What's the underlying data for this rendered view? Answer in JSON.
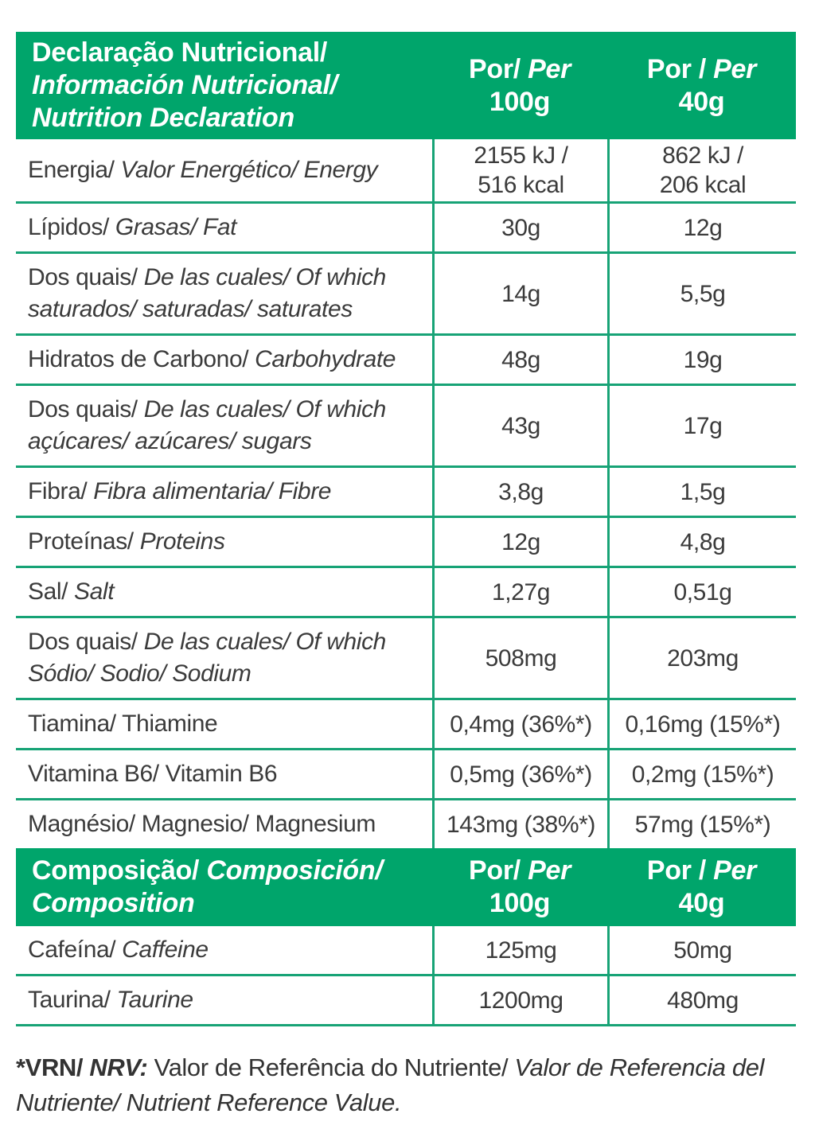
{
  "colors": {
    "green": "#00A56B",
    "line_green": "#17A376",
    "text_dark": "#3B3B3B",
    "header_text": "#FFFFFF"
  },
  "nutrition": {
    "header": {
      "title_lines": [
        [
          [
            "Declaração Nutricional/",
            "b"
          ]
        ],
        [
          [
            "Información Nutricional/",
            "bi"
          ]
        ],
        [
          [
            "Nutrition Declaration",
            "bi"
          ]
        ]
      ],
      "col_100": {
        "por_line": [
          [
            "Por/ ",
            "b"
          ],
          [
            "Per",
            "bi"
          ]
        ],
        "amount": "100g"
      },
      "col_40": {
        "por_line": [
          [
            "Por / ",
            "b"
          ],
          [
            "Per",
            "bi"
          ]
        ],
        "amount": "40g"
      }
    },
    "rows": [
      {
        "label": [
          [
            "Energia/ ",
            "r"
          ],
          [
            "Valor Energético/ Energy",
            "i"
          ]
        ],
        "per100": [
          "2155 kJ /",
          "516 kcal"
        ],
        "per40": [
          "862 kJ /",
          "206 kcal"
        ]
      },
      {
        "label": [
          [
            "Lípidos/ ",
            "r"
          ],
          [
            "Grasas/ Fat",
            "i"
          ]
        ],
        "per100": [
          "30g"
        ],
        "per40": [
          "12g"
        ]
      },
      {
        "label": [
          [
            "Dos quais/ ",
            "r"
          ],
          [
            "De las cuales/ Of which saturados/ saturadas/ saturates",
            "i"
          ]
        ],
        "per100": [
          "14g"
        ],
        "per40": [
          "5,5g"
        ]
      },
      {
        "label": [
          [
            "Hidratos de Carbono/ ",
            "r"
          ],
          [
            "Carbohydrate",
            "i"
          ]
        ],
        "per100": [
          "48g"
        ],
        "per40": [
          "19g"
        ]
      },
      {
        "label": [
          [
            "Dos quais/ ",
            "r"
          ],
          [
            "De las cuales/ Of which açúcares/ azúcares/ sugars",
            "i"
          ]
        ],
        "per100": [
          "43g"
        ],
        "per40": [
          "17g"
        ]
      },
      {
        "label": [
          [
            "Fibra/ ",
            "r"
          ],
          [
            "Fibra alimentaria/ Fibre",
            "i"
          ]
        ],
        "per100": [
          "3,8g"
        ],
        "per40": [
          "1,5g"
        ]
      },
      {
        "label": [
          [
            "Proteínas/ ",
            "r"
          ],
          [
            "Proteins",
            "i"
          ]
        ],
        "per100": [
          "12g"
        ],
        "per40": [
          "4,8g"
        ]
      },
      {
        "label": [
          [
            "Sal/ ",
            "r"
          ],
          [
            "Salt",
            "i"
          ]
        ],
        "per100": [
          "1,27g"
        ],
        "per40": [
          "0,51g"
        ]
      },
      {
        "label": [
          [
            "Dos quais/ ",
            "r"
          ],
          [
            "De las cuales/ Of which Sódio/ Sodio/ Sodium",
            "i"
          ]
        ],
        "per100": [
          "508mg"
        ],
        "per40": [
          "203mg"
        ]
      },
      {
        "label": [
          [
            "Tiamina/ Thiamine",
            "r"
          ]
        ],
        "per100": [
          "0,4mg (36%*)"
        ],
        "per40": [
          "0,16mg (15%*)"
        ]
      },
      {
        "label": [
          [
            "Vitamina B6/ Vitamin B6",
            "r"
          ]
        ],
        "per100": [
          "0,5mg (36%*)"
        ],
        "per40": [
          "0,2mg (15%*)"
        ]
      },
      {
        "label": [
          [
            "Magnésio/ Magnesio/ Magnesium",
            "r"
          ]
        ],
        "per100": [
          "143mg (38%*)"
        ],
        "per40": [
          "57mg (15%*)"
        ]
      }
    ]
  },
  "composition": {
    "header": {
      "title_lines": [
        [
          [
            "Composição/ ",
            "b"
          ],
          [
            "Composición/",
            "bi"
          ]
        ],
        [
          [
            "Composition",
            "bi"
          ]
        ]
      ],
      "col_100": {
        "por_line": [
          [
            "Por/ ",
            "b"
          ],
          [
            "Per",
            "bi"
          ]
        ],
        "amount": "100g"
      },
      "col_40": {
        "por_line": [
          [
            "Por / ",
            "b"
          ],
          [
            "Per",
            "bi"
          ]
        ],
        "amount": "40g"
      }
    },
    "rows": [
      {
        "label": [
          [
            "Cafeína/ ",
            "r"
          ],
          [
            "Caffeine",
            "i"
          ]
        ],
        "per100": [
          "125mg"
        ],
        "per40": [
          "50mg"
        ]
      },
      {
        "label": [
          [
            "Taurina/ ",
            "r"
          ],
          [
            "Taurine",
            "i"
          ]
        ],
        "per100": [
          "1200mg"
        ],
        "per40": [
          "480mg"
        ]
      }
    ]
  },
  "footnote": {
    "segments": [
      [
        "*VRN/ ",
        "b"
      ],
      [
        "NRV: ",
        "bi"
      ],
      [
        "Valor de Referência do Nutriente/ ",
        "r"
      ],
      [
        "Valor de Referencia del Nutriente/ Nutrient Reference Value.",
        "i"
      ]
    ]
  }
}
